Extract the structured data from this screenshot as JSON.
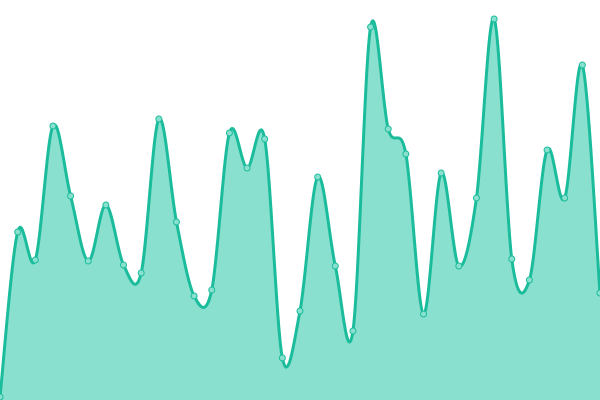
{
  "chart_data": {
    "type": "area",
    "smooth": true,
    "show_points": true,
    "grid": false,
    "axes_visible": false,
    "ylim": [
      0,
      400
    ],
    "x": [
      0,
      1,
      2,
      3,
      4,
      5,
      6,
      7,
      8,
      9,
      10,
      11,
      12,
      13,
      14,
      15,
      16,
      17,
      18,
      19,
      20,
      21,
      22,
      23,
      24,
      25,
      26,
      27,
      28,
      29,
      30,
      31,
      32,
      33,
      34
    ],
    "series": [
      {
        "values": [
          3,
          168,
          140,
          274,
          204,
          139,
          195,
          135,
          127,
          281,
          178,
          104,
          110,
          267,
          232,
          261,
          42,
          89,
          223,
          134,
          69,
          373,
          271,
          246,
          86,
          227,
          134,
          202,
          381,
          141,
          120,
          250,
          202,
          335,
          107
        ],
        "line_color": "#1abc9c",
        "fill_color": "#8ae0ce",
        "point_fill": "#8ae0ce",
        "point_stroke": "#1abc9c"
      }
    ]
  }
}
